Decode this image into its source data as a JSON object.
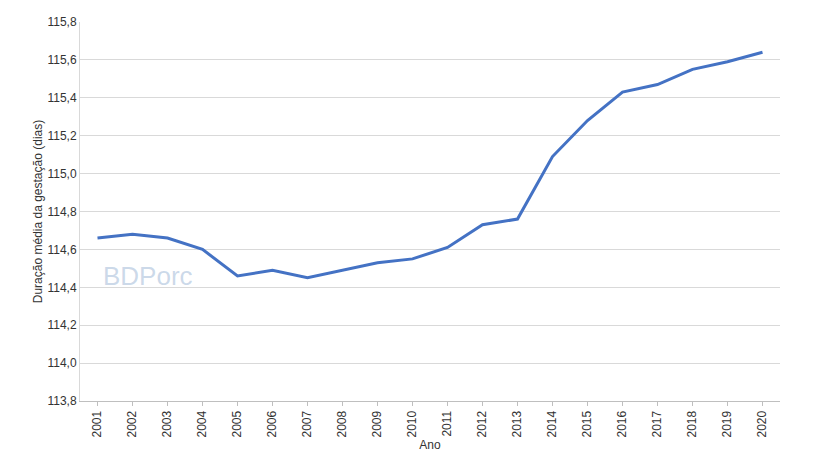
{
  "chart_data": {
    "type": "line",
    "x_label": "Ano",
    "y_label": "Duração média da gestação (dias)",
    "categories": [
      "2001",
      "2002",
      "2003",
      "2004",
      "2005",
      "2006",
      "2007",
      "2008",
      "2009",
      "2010",
      "2011",
      "2012",
      "2013",
      "2014",
      "2015",
      "2016",
      "2017",
      "2018",
      "2019",
      "2020"
    ],
    "values": [
      114.66,
      114.68,
      114.66,
      114.6,
      114.46,
      114.49,
      114.45,
      114.49,
      114.53,
      114.55,
      114.61,
      114.73,
      114.76,
      115.09,
      115.28,
      115.43,
      115.47,
      115.55,
      115.59,
      115.64
    ],
    "color": "#4472c4",
    "ylim": [
      113.8,
      115.8
    ],
    "yticks": [
      {
        "value": 113.8,
        "label": "113,8"
      },
      {
        "value": 114.0,
        "label": "114,0"
      },
      {
        "value": 114.2,
        "label": "114,2"
      },
      {
        "value": 114.4,
        "label": "114,4"
      },
      {
        "value": 114.6,
        "label": "114,6"
      },
      {
        "value": 114.8,
        "label": "114,8"
      },
      {
        "value": 115.0,
        "label": "115,0"
      },
      {
        "value": 115.2,
        "label": "115,2"
      },
      {
        "value": 115.4,
        "label": "115,4"
      },
      {
        "value": 115.6,
        "label": "115,6"
      },
      {
        "value": 115.8,
        "label": "115,8"
      }
    ],
    "grid": true,
    "annotations": [
      {
        "text": "BDPorc"
      }
    ]
  }
}
